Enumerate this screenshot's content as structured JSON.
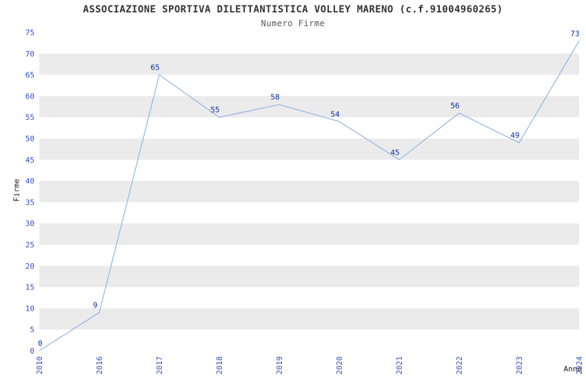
{
  "chart_data": {
    "type": "line",
    "title": "ASSOCIAZIONE SPORTIVA DILETTANTISTICA VOLLEY MARENO (c.f.91004960265)",
    "subtitle": "Numero Firme",
    "xlabel": "Anno",
    "ylabel": "Firme",
    "categories": [
      "2010",
      "2016",
      "2017",
      "2018",
      "2019",
      "2020",
      "2021",
      "2022",
      "2023",
      "2024"
    ],
    "values": [
      0,
      9,
      65,
      55,
      58,
      54,
      45,
      56,
      49,
      73
    ],
    "ylim": [
      0,
      75
    ],
    "ytick_step": 5,
    "grid": "horizontal-bands",
    "legend": "none",
    "colors": {
      "line": "#8fb4e3",
      "band": "#ebebeb",
      "tick_label": "#3050c8",
      "point_label": "#0d2f9e",
      "title": "#333333",
      "subtitle": "#555555"
    }
  }
}
